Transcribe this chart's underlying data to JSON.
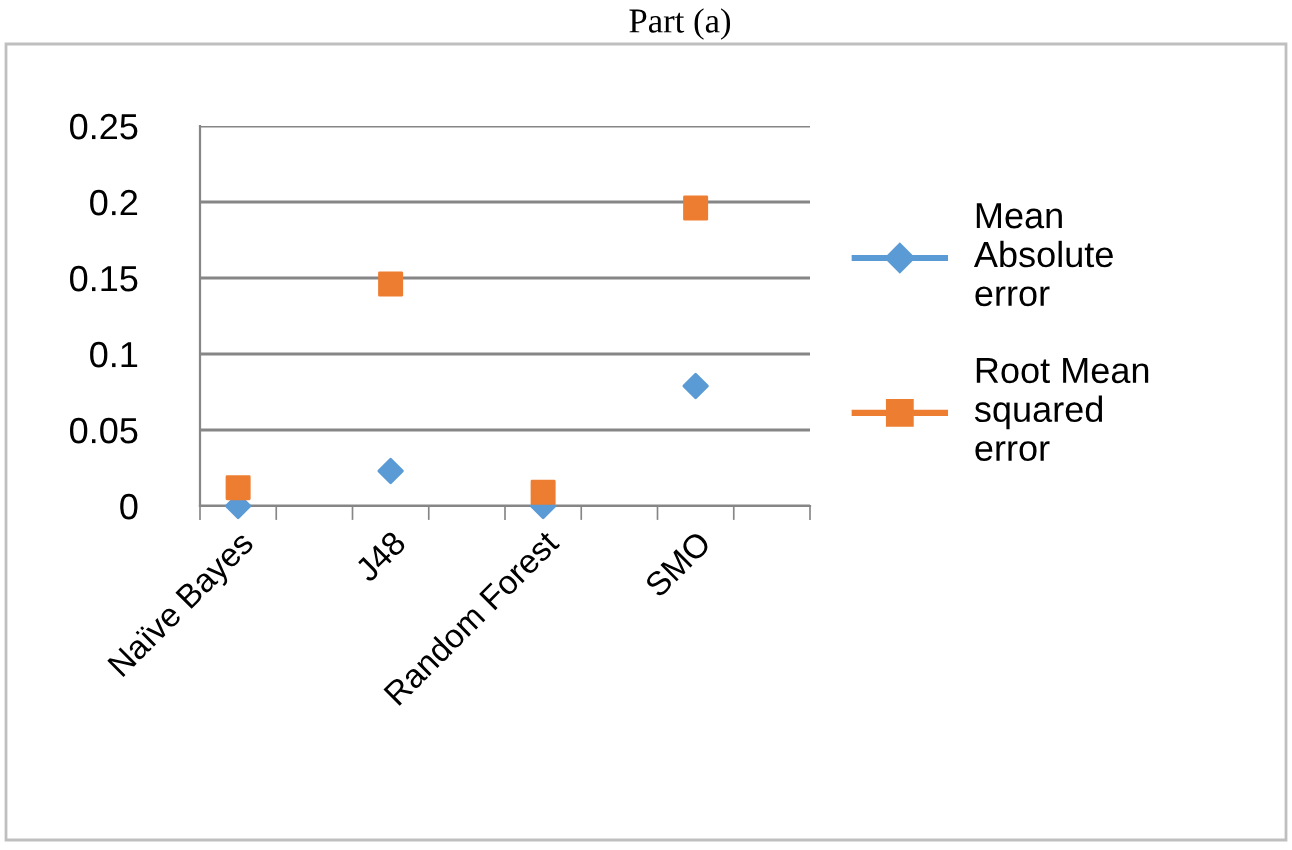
{
  "chart_data": {
    "type": "scatter",
    "title": "Part (a)",
    "categories": [
      "Naïve Bayes",
      "J48",
      "Random Forest",
      "SMO"
    ],
    "series": [
      {
        "name": "Mean Absolute error",
        "color": "#5b9bd5",
        "marker": "diamond",
        "values": [
          0,
          0.023,
          0,
          0.079
        ]
      },
      {
        "name": "Root Mean squared error",
        "color": "#ed7d31",
        "marker": "square",
        "values": [
          0.012,
          0.146,
          0.009,
          0.196
        ]
      }
    ],
    "ylim": [
      0,
      0.25
    ],
    "yticks": [
      0,
      0.05,
      0.1,
      0.15,
      0.2,
      0.25
    ],
    "grid": "y",
    "legend": "right"
  }
}
